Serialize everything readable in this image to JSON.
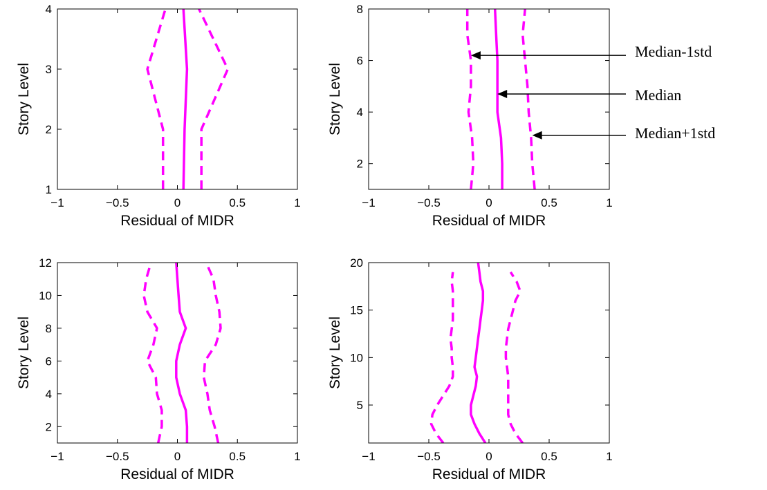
{
  "colors": {
    "series": "#ff00ff",
    "axes": "#000000",
    "annotation_arrow": "#000000"
  },
  "chart_data": [
    {
      "type": "line",
      "xlabel": "Residual of MIDR",
      "ylabel": "Story Level",
      "xlim": [
        -1,
        1
      ],
      "ylim": [
        1,
        4
      ],
      "xticks": [
        -1,
        -0.5,
        0,
        0.5,
        1
      ],
      "xtick_labels": [
        "−1",
        "−0.5",
        "0",
        "0.5",
        "1"
      ],
      "yticks": [
        1,
        2,
        3,
        4
      ],
      "ytick_labels": [
        "1",
        "2",
        "3",
        "4"
      ],
      "grid": false,
      "series": [
        {
          "style": "dashed",
          "points": [
            [
              -0.12,
              1
            ],
            [
              -0.12,
              2
            ],
            [
              -0.25,
              3
            ],
            [
              -0.1,
              4
            ]
          ]
        },
        {
          "style": "solid",
          "points": [
            [
              0.05,
              1
            ],
            [
              0.06,
              2
            ],
            [
              0.08,
              3
            ],
            [
              0.05,
              4
            ]
          ]
        },
        {
          "style": "dashed",
          "points": [
            [
              0.2,
              1
            ],
            [
              0.2,
              2
            ],
            [
              0.42,
              3
            ],
            [
              0.18,
              4
            ]
          ]
        }
      ]
    },
    {
      "type": "line",
      "xlabel": "Residual of MIDR",
      "ylabel": "Story Level",
      "xlim": [
        -1,
        1
      ],
      "ylim": [
        1,
        8
      ],
      "xticks": [
        -1,
        -0.5,
        0,
        0.5,
        1
      ],
      "xtick_labels": [
        "−1",
        "−0.5",
        "0",
        "0.5",
        "1"
      ],
      "yticks": [
        2,
        4,
        6,
        8
      ],
      "ytick_labels": [
        "2",
        "4",
        "6",
        "8"
      ],
      "grid": false,
      "series": [
        {
          "style": "dashed",
          "points": [
            [
              -0.15,
              1
            ],
            [
              -0.13,
              2
            ],
            [
              -0.14,
              3
            ],
            [
              -0.17,
              4
            ],
            [
              -0.15,
              5
            ],
            [
              -0.15,
              6
            ],
            [
              -0.18,
              7
            ],
            [
              -0.18,
              8
            ]
          ]
        },
        {
          "style": "solid",
          "points": [
            [
              0.11,
              1
            ],
            [
              0.11,
              2
            ],
            [
              0.1,
              3
            ],
            [
              0.07,
              4
            ],
            [
              0.07,
              5
            ],
            [
              0.07,
              6
            ],
            [
              0.06,
              7
            ],
            [
              0.05,
              8
            ]
          ]
        },
        {
          "style": "dashed",
          "points": [
            [
              0.38,
              1
            ],
            [
              0.36,
              2
            ],
            [
              0.35,
              3
            ],
            [
              0.33,
              4
            ],
            [
              0.32,
              5
            ],
            [
              0.3,
              6
            ],
            [
              0.28,
              7
            ],
            [
              0.3,
              8
            ]
          ]
        }
      ],
      "annotations": [
        {
          "text": "Median-1std",
          "target": [
            -0.15,
            6.2
          ]
        },
        {
          "text": "Median",
          "target": [
            0.07,
            4.7
          ]
        },
        {
          "text": "Median+1std",
          "target": [
            0.36,
            3.1
          ]
        }
      ]
    },
    {
      "type": "line",
      "xlabel": "Residual of MIDR",
      "ylabel": "Story Level",
      "xlim": [
        -1,
        1
      ],
      "ylim": [
        1,
        12
      ],
      "xticks": [
        -1,
        -0.5,
        0,
        0.5,
        1
      ],
      "xtick_labels": [
        "−1",
        "−0.5",
        "0",
        "0.5",
        "1"
      ],
      "yticks": [
        2,
        4,
        6,
        8,
        10,
        12
      ],
      "ytick_labels": [
        "2",
        "4",
        "6",
        "8",
        "10",
        "12"
      ],
      "grid": false,
      "series": [
        {
          "style": "dashed",
          "points": [
            [
              -0.16,
              1
            ],
            [
              -0.13,
              2
            ],
            [
              -0.13,
              3
            ],
            [
              -0.17,
              4
            ],
            [
              -0.18,
              5
            ],
            [
              -0.25,
              6
            ],
            [
              -0.2,
              7
            ],
            [
              -0.17,
              8
            ],
            [
              -0.25,
              9
            ],
            [
              -0.28,
              10
            ],
            [
              -0.26,
              11
            ],
            [
              -0.22,
              12
            ]
          ]
        },
        {
          "style": "solid",
          "points": [
            [
              0.08,
              1
            ],
            [
              0.08,
              2
            ],
            [
              0.07,
              3
            ],
            [
              0.02,
              4
            ],
            [
              -0.01,
              5
            ],
            [
              -0.01,
              6
            ],
            [
              0.02,
              7
            ],
            [
              0.07,
              8
            ],
            [
              0.02,
              9
            ],
            [
              0.01,
              10
            ],
            [
              0.0,
              11
            ],
            [
              -0.01,
              12
            ]
          ]
        },
        {
          "style": "dashed",
          "points": [
            [
              0.34,
              1
            ],
            [
              0.31,
              2
            ],
            [
              0.27,
              3
            ],
            [
              0.25,
              4
            ],
            [
              0.22,
              5
            ],
            [
              0.23,
              6
            ],
            [
              0.32,
              7
            ],
            [
              0.36,
              8
            ],
            [
              0.35,
              9
            ],
            [
              0.32,
              10
            ],
            [
              0.3,
              11
            ],
            [
              0.24,
              12
            ]
          ]
        }
      ]
    },
    {
      "type": "line",
      "xlabel": "Residual of MIDR",
      "ylabel": "Story Level",
      "xlim": [
        -1,
        1
      ],
      "ylim": [
        1,
        20
      ],
      "xticks": [
        -1,
        -0.5,
        0,
        0.5,
        1
      ],
      "xtick_labels": [
        "−1",
        "−0.5",
        "0",
        "0.5",
        "1"
      ],
      "yticks": [
        5,
        10,
        15,
        20
      ],
      "ytick_labels": [
        "5",
        "10",
        "15",
        "20"
      ],
      "grid": false,
      "series": [
        {
          "style": "dashed",
          "points": [
            [
              -0.38,
              1
            ],
            [
              -0.44,
              2
            ],
            [
              -0.48,
              3
            ],
            [
              -0.47,
              4
            ],
            [
              -0.43,
              5
            ],
            [
              -0.38,
              6
            ],
            [
              -0.33,
              7
            ],
            [
              -0.3,
              8
            ],
            [
              -0.3,
              9
            ],
            [
              -0.31,
              10
            ],
            [
              -0.31,
              11
            ],
            [
              -0.32,
              12
            ],
            [
              -0.31,
              13
            ],
            [
              -0.3,
              14
            ],
            [
              -0.3,
              15
            ],
            [
              -0.3,
              16
            ],
            [
              -0.3,
              17
            ],
            [
              -0.31,
              18
            ],
            [
              -0.3,
              19
            ]
          ]
        },
        {
          "style": "solid",
          "points": [
            [
              -0.03,
              1
            ],
            [
              -0.08,
              2
            ],
            [
              -0.12,
              3
            ],
            [
              -0.15,
              4
            ],
            [
              -0.15,
              5
            ],
            [
              -0.13,
              6
            ],
            [
              -0.11,
              7
            ],
            [
              -0.1,
              8
            ],
            [
              -0.12,
              9
            ],
            [
              -0.11,
              10
            ],
            [
              -0.1,
              11
            ],
            [
              -0.09,
              12
            ],
            [
              -0.08,
              13
            ],
            [
              -0.07,
              14
            ],
            [
              -0.06,
              15
            ],
            [
              -0.05,
              16
            ],
            [
              -0.05,
              17
            ],
            [
              -0.07,
              18
            ],
            [
              -0.08,
              19
            ],
            [
              -0.09,
              20
            ]
          ]
        },
        {
          "style": "dashed",
          "points": [
            [
              0.28,
              1
            ],
            [
              0.22,
              2
            ],
            [
              0.18,
              3
            ],
            [
              0.16,
              4
            ],
            [
              0.16,
              5
            ],
            [
              0.16,
              6
            ],
            [
              0.16,
              7
            ],
            [
              0.16,
              8
            ],
            [
              0.15,
              9
            ],
            [
              0.14,
              10
            ],
            [
              0.14,
              11
            ],
            [
              0.15,
              12
            ],
            [
              0.16,
              13
            ],
            [
              0.18,
              14
            ],
            [
              0.2,
              15
            ],
            [
              0.22,
              16
            ],
            [
              0.26,
              17
            ],
            [
              0.23,
              18
            ],
            [
              0.18,
              19
            ]
          ]
        }
      ]
    }
  ]
}
